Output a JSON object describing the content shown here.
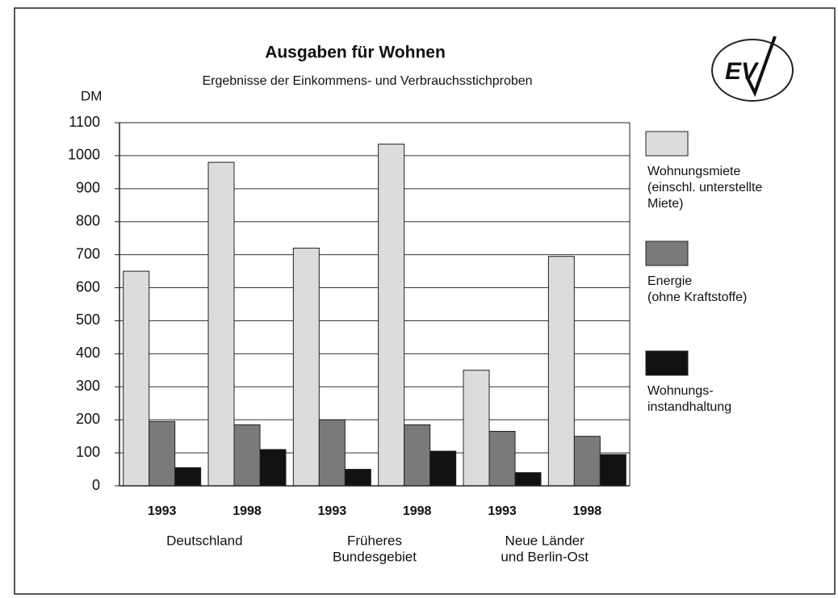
{
  "chart_data": {
    "type": "bar",
    "title": "Ausgaben für Wohnen",
    "subtitle": "Ergebnisse der Einkommens- und Verbrauchsstichproben",
    "y_label": "DM",
    "logo": "EV",
    "categories": [
      "1993",
      "1998",
      "1993",
      "1998",
      "1993",
      "1998"
    ],
    "groups": [
      [
        "Deutschland"
      ],
      [
        "Früheres",
        "Bundesgebiet"
      ],
      [
        "Neue Länder",
        "und Berlin-Ost"
      ]
    ],
    "series": [
      {
        "name": [
          "Wohnungsmiete",
          "(einschl. unterstellte",
          "Miete)"
        ],
        "color": "#dcdcdc",
        "values": [
          650,
          980,
          720,
          1035,
          350,
          695
        ]
      },
      {
        "name": [
          "Energie",
          "(ohne Kraftstoffe)"
        ],
        "color": "#7a7a7a",
        "values": [
          195,
          185,
          200,
          185,
          165,
          150
        ]
      },
      {
        "name": [
          "Wohnungs-",
          "instandhaltung"
        ],
        "color": "#111111",
        "values": [
          55,
          110,
          50,
          105,
          40,
          95
        ]
      }
    ],
    "ylim": [
      0,
      1100
    ],
    "yticks": [
      0,
      100,
      200,
      300,
      400,
      500,
      600,
      700,
      800,
      900,
      1000,
      1100
    ],
    "grid": true
  }
}
